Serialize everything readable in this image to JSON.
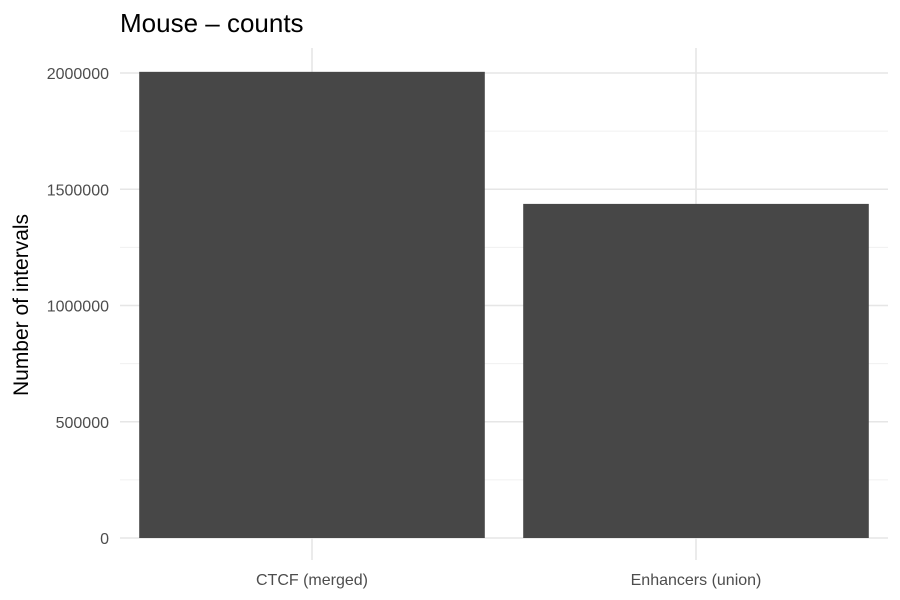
{
  "chart_data": {
    "type": "bar",
    "title": "Mouse – counts",
    "xlabel": "",
    "ylabel": "Number of intervals",
    "categories": [
      "CTCF (merged)",
      "Enhancers (union)"
    ],
    "values": [
      2005000,
      1437000
    ],
    "ylim": [
      0,
      2000000
    ],
    "y_ticks": [
      0,
      500000,
      1000000,
      1500000,
      2000000
    ],
    "y_tick_labels": [
      "0",
      "500000",
      "1000000",
      "1500000",
      "2000000"
    ],
    "grid": true,
    "legend": "none",
    "colors": {
      "bar": "#474747",
      "grid_major": "#e6e6e6",
      "grid_minor": "#f0f0f0",
      "tick_text": "#4d4d4d"
    }
  }
}
